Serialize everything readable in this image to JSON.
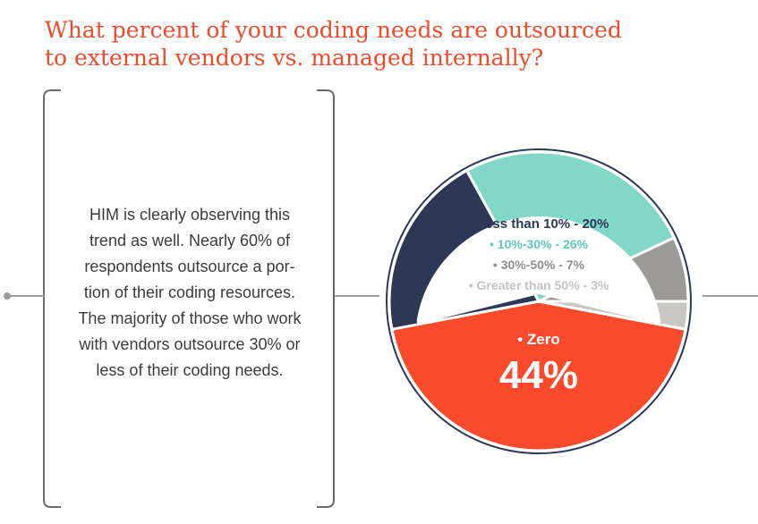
{
  "title_lines": [
    "What percent of your coding needs are outsourced",
    "to external vendors vs. managed internally?"
  ],
  "commentary_lines": [
    "HIM is clearly observing this",
    "trend as well.  Nearly 60% of",
    "respondents outsource a por-",
    "tion of their coding resources.",
    "The majority of those who work",
    "with vendors outsource 30% or",
    "less of their coding needs."
  ],
  "chart_data": {
    "type": "pie",
    "title": "",
    "categories": [
      "Zero",
      "Less than 10%",
      "10%-30%",
      "30%-50%",
      "Greater than 50%"
    ],
    "values": [
      44,
      20,
      26,
      7,
      3
    ],
    "unit": "%",
    "colors": [
      "#f94a2c",
      "#2d3856",
      "#82d8c8",
      "#9b9a97",
      "#c8c7c4"
    ],
    "labels": [
      {
        "text": "• Zero",
        "value": "44%",
        "color": "#ffffff"
      },
      {
        "text": "• Less than 10% - 20%",
        "color": "#2d3856"
      },
      {
        "text": "• 10%-30% - 26%",
        "color": "#5fc9b6"
      },
      {
        "text": "• 30%-50% - 7%",
        "color": "#8f8e8b"
      },
      {
        "text": "• Greater than 50% - 3%",
        "color": "#c4c3c0"
      }
    ]
  }
}
